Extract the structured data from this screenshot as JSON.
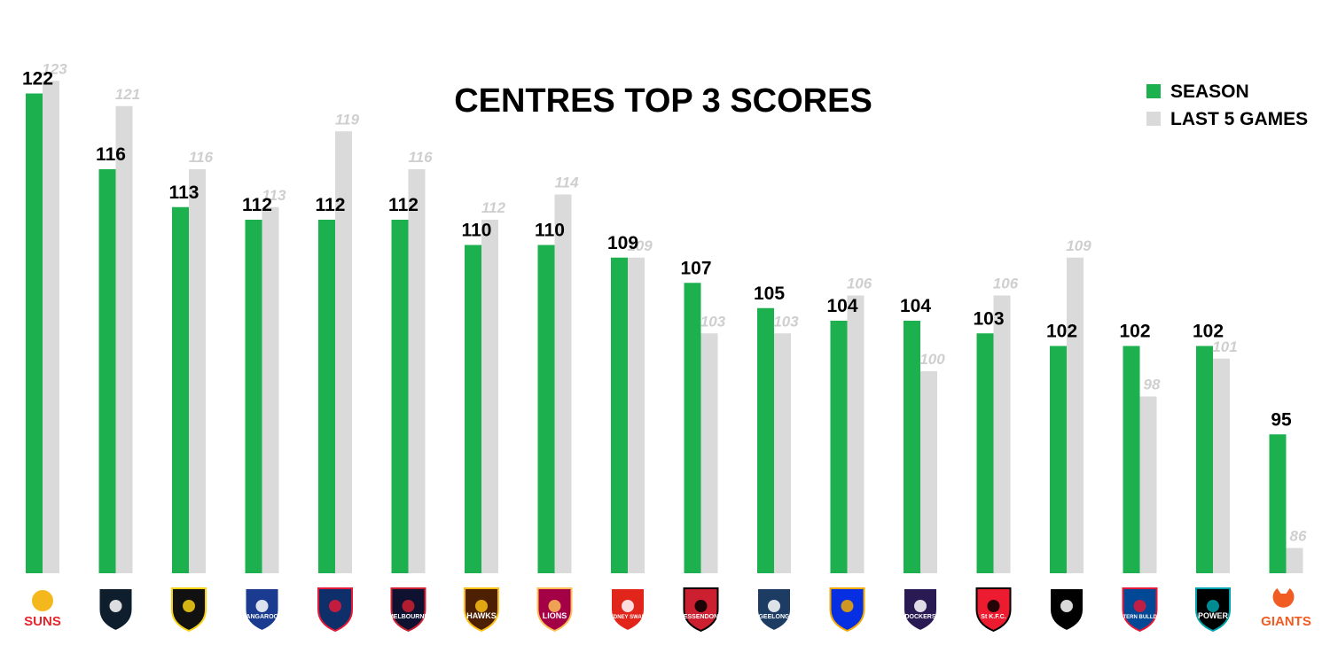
{
  "chart_data": {
    "type": "bar",
    "title": "CENTRES TOP 3 SCORES",
    "categories": [
      "SUNS",
      "Carlton",
      "Richmond",
      "KANGAROOS",
      "Adelaide",
      "MELBOURNE",
      "HAWKS",
      "BRISBANE LIONS",
      "SYDNEY SWANS",
      "ESSENDON",
      "GEELONG CATS",
      "West Coast",
      "FREMANTLE DOCKERS",
      "ST. K.F.C.",
      "Collingwood",
      "WESTERN BULLDOGS",
      "POWER",
      "GIANTS"
    ],
    "series": [
      {
        "name": "SEASON",
        "color": "#1cb04e",
        "values": [
          122,
          116,
          113,
          112,
          112,
          112,
          110,
          110,
          109,
          107,
          105,
          104,
          104,
          103,
          102,
          102,
          102,
          95
        ]
      },
      {
        "name": "LAST 5 GAMES",
        "color": "#dadada",
        "values": [
          123,
          121,
          116,
          113,
          119,
          116,
          112,
          114,
          109,
          103,
          103,
          106,
          100,
          106,
          109,
          98,
          101,
          86
        ]
      }
    ],
    "ylim": [
      84,
      124
    ],
    "legend_position": "top-right",
    "grid": false
  },
  "logos": [
    {
      "icon": "suns-logo-icon",
      "text": "SUNS",
      "color": "#e4262c",
      "accent": "#f4b81d"
    },
    {
      "icon": "carlton-logo-icon",
      "text": "",
      "color": "#0e1e2d",
      "accent": "#ffffff"
    },
    {
      "icon": "tigers-logo-icon",
      "text": "",
      "color": "#111111",
      "accent": "#f8d214"
    },
    {
      "icon": "kangaroos-logo-icon",
      "text": "KANGAROOS",
      "color": "#1a3b8f",
      "accent": "#ffffff"
    },
    {
      "icon": "crows-logo-icon",
      "text": "",
      "color": "#0f2f6b",
      "accent": "#e21937"
    },
    {
      "icon": "demons-logo-icon",
      "text": "MELBOURNE",
      "color": "#0f1131",
      "accent": "#cc2031"
    },
    {
      "icon": "hawks-logo-icon",
      "text": "HAWKS",
      "color": "#4d2004",
      "accent": "#fbbf15"
    },
    {
      "icon": "lions-logo-icon",
      "text": "LIONS",
      "color": "#a30046",
      "accent": "#fdbe57"
    },
    {
      "icon": "swans-logo-icon",
      "text": "SYDNEY SWANS",
      "color": "#e1251b",
      "accent": "#ffffff"
    },
    {
      "icon": "bombers-logo-icon",
      "text": "ESSENDON",
      "color": "#cc2031",
      "accent": "#000000"
    },
    {
      "icon": "cats-logo-icon",
      "text": "GEELONG",
      "color": "#1c3c63",
      "accent": "#ffffff"
    },
    {
      "icon": "eagles-logo-icon",
      "text": "",
      "color": "#062ee2",
      "accent": "#f2a900"
    },
    {
      "icon": "dockers-logo-icon",
      "text": "DOCKERS",
      "color": "#2a1a54",
      "accent": "#ffffff"
    },
    {
      "icon": "saints-logo-icon",
      "text": "St K.F.C.",
      "color": "#ed1b2f",
      "accent": "#000000"
    },
    {
      "icon": "magpies-logo-icon",
      "text": "",
      "color": "#000000",
      "accent": "#ffffff"
    },
    {
      "icon": "bulldogs-logo-icon",
      "text": "WESTERN BULLDOGS",
      "color": "#014896",
      "accent": "#e21937"
    },
    {
      "icon": "power-logo-icon",
      "text": "POWER",
      "color": "#000000",
      "accent": "#00a3ad"
    },
    {
      "icon": "giants-logo-icon",
      "text": "GIANTS",
      "color": "#f15c22",
      "accent": "#ffffff"
    }
  ]
}
